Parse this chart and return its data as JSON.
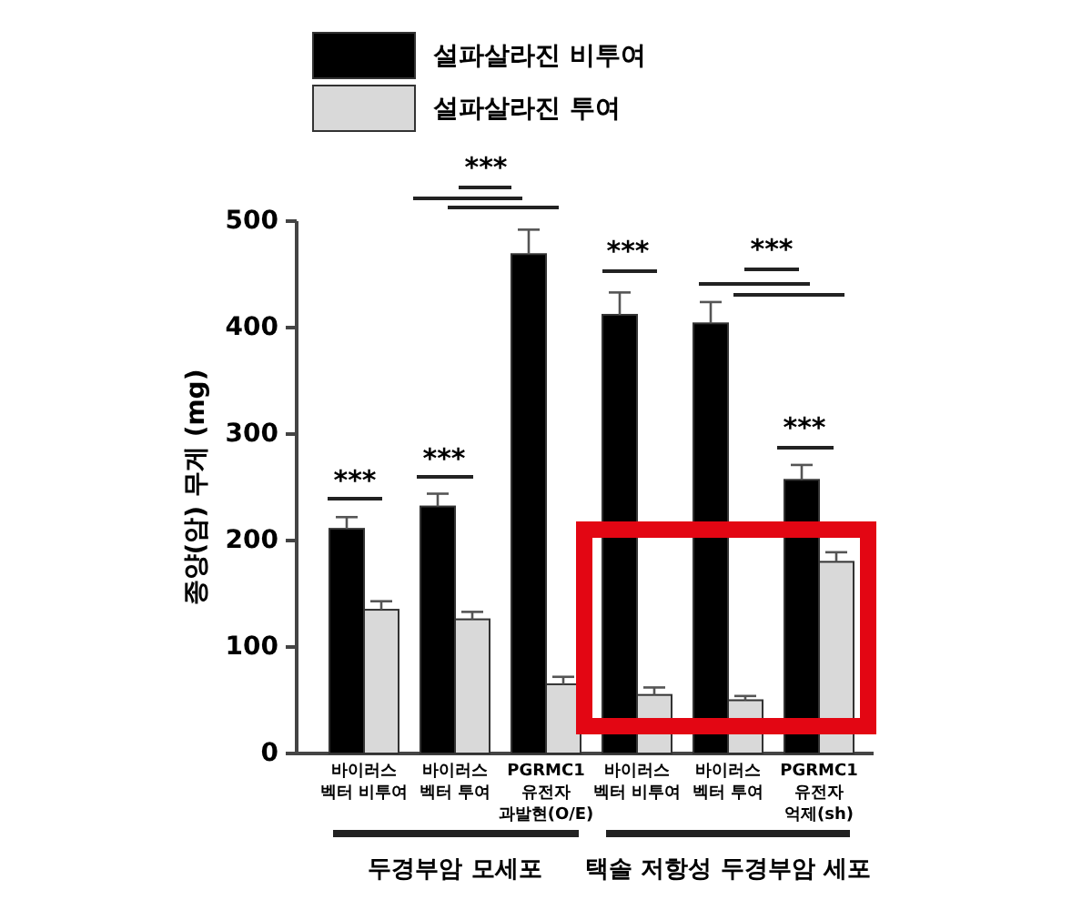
{
  "chart_data": {
    "type": "bar",
    "ylabel": "종양(암) 무게 (mg)",
    "categories": [
      "바이러스\n벡터 비투여",
      "바이러스\n벡터 투여",
      "PGRMC1\n유전자\n과발현(O/E)",
      "바이러스\n벡터 비투여",
      "바이러스\n벡터 투여",
      "PGRMC1\n유전자\n억제(sh)"
    ],
    "series": [
      {
        "name": "설파살라진 비투여",
        "color": "#000000",
        "values": [
          211,
          232,
          469,
          412,
          404,
          257
        ],
        "errors": [
          [
            211,
            222
          ],
          [
            232,
            244
          ],
          [
            469,
            492
          ],
          [
            412,
            433
          ],
          [
            404,
            424
          ],
          [
            257,
            271
          ]
        ]
      },
      {
        "name": "설파살라진 투여",
        "color": "#d9d9d9",
        "values": [
          135,
          126,
          65,
          55,
          50,
          180
        ],
        "errors": [
          [
            135,
            143
          ],
          [
            126,
            133
          ],
          [
            65,
            72
          ],
          [
            55,
            62
          ],
          [
            50,
            54
          ],
          [
            180,
            189
          ]
        ]
      }
    ],
    "ylim": [
      0,
      500
    ],
    "yticks": [
      0,
      100,
      200,
      300,
      400,
      500
    ],
    "grid": false,
    "legend": "top left",
    "annotations": [
      "***",
      "***",
      "***",
      "***",
      "***",
      "***",
      "두경부암 모세포",
      "택솔 저항성 두경부암 세포"
    ]
  }
}
